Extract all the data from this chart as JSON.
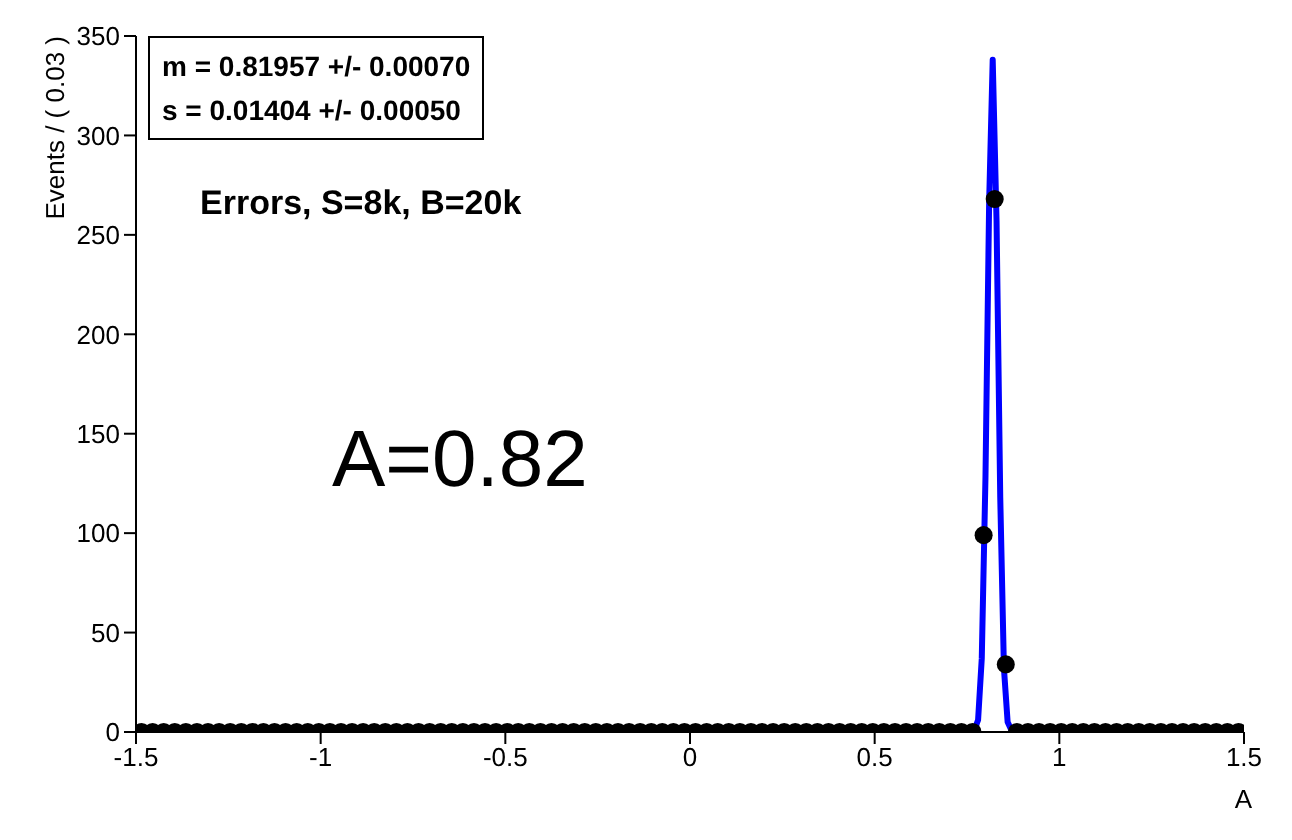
{
  "chart_data": {
    "type": "line",
    "title": "Errors, S=8k, B=20k",
    "xlabel": "A",
    "ylabel": "Events / ( 0.03 )",
    "annotations": [
      "m =  0.81957 +/- 0.00070",
      "s =  0.01404 +/- 0.00050",
      "A=0.82"
    ],
    "xlim": [
      -1.5,
      1.5
    ],
    "xticks": [
      -1.5,
      -1,
      -0.5,
      0,
      0.5,
      1,
      1.5
    ],
    "ylim": [
      0,
      350
    ],
    "yticks": [
      0,
      50,
      100,
      150,
      200,
      250,
      300,
      350
    ],
    "series": [
      {
        "type": "scatter",
        "color": "#000000",
        "marker": "circle",
        "x": [
          -1.485,
          -1.455,
          -1.425,
          -1.395,
          -1.365,
          -1.335,
          -1.305,
          -1.275,
          -1.245,
          -1.215,
          -1.185,
          -1.155,
          -1.125,
          -1.095,
          -1.065,
          -1.035,
          -1.005,
          -0.975,
          -0.945,
          -0.915,
          -0.885,
          -0.855,
          -0.825,
          -0.795,
          -0.765,
          -0.735,
          -0.705,
          -0.675,
          -0.645,
          -0.615,
          -0.585,
          -0.555,
          -0.525,
          -0.495,
          -0.465,
          -0.435,
          -0.405,
          -0.375,
          -0.345,
          -0.315,
          -0.285,
          -0.255,
          -0.225,
          -0.195,
          -0.165,
          -0.135,
          -0.105,
          -0.075,
          -0.045,
          -0.015,
          0.015,
          0.045,
          0.075,
          0.105,
          0.135,
          0.165,
          0.195,
          0.225,
          0.255,
          0.285,
          0.315,
          0.345,
          0.375,
          0.405,
          0.435,
          0.465,
          0.495,
          0.525,
          0.555,
          0.585,
          0.615,
          0.645,
          0.675,
          0.705,
          0.735,
          0.765,
          0.795,
          0.825,
          0.855,
          0.885,
          0.915,
          0.945,
          0.975,
          1.005,
          1.035,
          1.065,
          1.095,
          1.125,
          1.155,
          1.185,
          1.215,
          1.245,
          1.275,
          1.305,
          1.335,
          1.365,
          1.395,
          1.425,
          1.455,
          1.485
        ],
        "values": [
          0,
          0,
          0,
          0,
          0,
          0,
          0,
          0,
          0,
          0,
          0,
          0,
          0,
          0,
          0,
          0,
          0,
          0,
          0,
          0,
          0,
          0,
          0,
          0,
          0,
          0,
          0,
          0,
          0,
          0,
          0,
          0,
          0,
          0,
          0,
          0,
          0,
          0,
          0,
          0,
          0,
          0,
          0,
          0,
          0,
          0,
          0,
          0,
          0,
          0,
          0,
          0,
          0,
          0,
          0,
          0,
          0,
          0,
          0,
          0,
          0,
          0,
          0,
          0,
          0,
          0,
          0,
          0,
          0,
          0,
          0,
          0,
          0,
          0,
          0,
          0,
          99,
          268,
          34,
          0,
          0,
          0,
          0,
          0,
          0,
          0,
          0,
          0,
          0,
          0,
          0,
          0,
          0,
          0,
          0,
          0,
          0,
          0,
          0,
          0
        ]
      },
      {
        "type": "line",
        "color": "#0000ff",
        "marker": "none",
        "x": [
          -1.5,
          0.76,
          0.77,
          0.78,
          0.79,
          0.8,
          0.81,
          0.8196,
          0.83,
          0.84,
          0.85,
          0.86,
          0.87,
          0.88,
          1.5
        ],
        "values": [
          0,
          0,
          1,
          6,
          37,
          128,
          267,
          338,
          257,
          118,
          32,
          5,
          1,
          0,
          0
        ]
      }
    ]
  }
}
